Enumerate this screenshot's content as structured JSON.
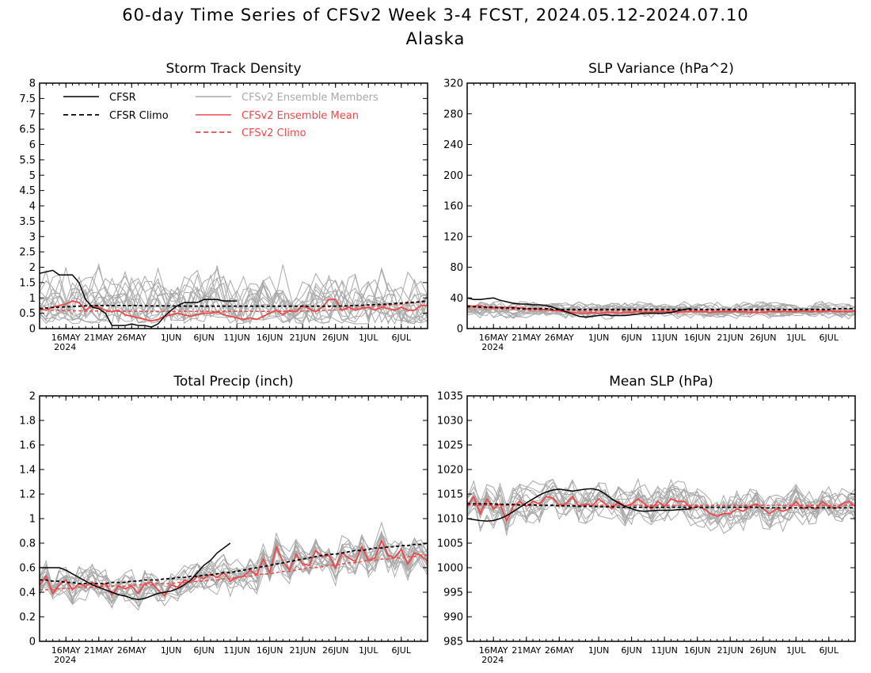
{
  "title": "60-day Time Series of CFSv2 Week 3-4 FCST, 2024.05.12-2024.07.10",
  "subtitle": "Alaska",
  "colors": {
    "cfsr": "#000000",
    "ensemble_members": "#a8a8a8",
    "ensemble_mean": "#f04848",
    "cfsv2_climo": "#f04848",
    "cfsr_climo": "#000000"
  },
  "legend": {
    "cfsr": "CFSR",
    "cfsr_climo": "CFSR Climo",
    "members": "CFSv2 Ensemble Members",
    "mean": "CFSv2 Ensemble Mean",
    "cfsv2_climo": "CFSv2 Climo"
  },
  "chart_data": [
    {
      "type": "line",
      "title": "Storm Track Density",
      "x_range": [
        "2024-05-12",
        "2024-07-10"
      ],
      "x_ticks": [
        "16MAY",
        "21MAY",
        "26MAY",
        "1JUN",
        "6JUN",
        "11JUN",
        "16JUN",
        "21JUN",
        "26JUN",
        "1JUL",
        "6JUL"
      ],
      "x_tick_dates": [
        "2024-05-16",
        "2024-05-21",
        "2024-05-26",
        "2024-06-01",
        "2024-06-06",
        "2024-06-11",
        "2024-06-16",
        "2024-06-21",
        "2024-06-26",
        "2024-07-01",
        "2024-07-06"
      ],
      "year_label": "2024",
      "ylim": [
        0,
        8
      ],
      "y_ticks": [
        "0",
        "0.5",
        "1",
        "1.5",
        "2",
        "2.5",
        "3",
        "3.5",
        "4",
        "4.5",
        "5",
        "5.5",
        "6",
        "6.5",
        "7",
        "7.5",
        "8"
      ],
      "legend_placement": "top-left",
      "series": {
        "cfsr": [
          1.8,
          1.85,
          1.9,
          1.75,
          1.75,
          1.75,
          1.5,
          0.95,
          0.7,
          0.65,
          0.5,
          0.1,
          0.1,
          0.1,
          0.15,
          0.1,
          0.1,
          0.05,
          0.15,
          0.4,
          0.6,
          0.75,
          0.85,
          0.85,
          0.85,
          0.95,
          0.95,
          0.95,
          0.9,
          0.9,
          0.9
        ],
        "cfsr_climo": [
          0.65,
          0.67,
          0.69,
          0.7,
          0.71,
          0.72,
          0.73,
          0.74,
          0.75,
          0.75,
          0.75,
          0.75,
          0.75,
          0.75,
          0.75,
          0.75,
          0.74,
          0.74,
          0.74,
          0.74,
          0.74,
          0.73,
          0.73,
          0.73,
          0.73,
          0.73,
          0.73,
          0.73,
          0.73,
          0.73,
          0.73,
          0.73,
          0.73,
          0.73,
          0.73,
          0.73,
          0.73,
          0.73,
          0.73,
          0.73,
          0.73,
          0.73,
          0.73,
          0.73,
          0.73,
          0.73,
          0.74,
          0.74,
          0.75,
          0.76,
          0.77,
          0.78,
          0.79,
          0.8,
          0.82,
          0.83,
          0.85,
          0.86,
          0.88,
          0.9
        ],
        "cfsv2_mean": [
          0.65,
          0.6,
          0.7,
          0.75,
          0.8,
          0.9,
          0.85,
          0.6,
          0.75,
          0.7,
          0.6,
          0.55,
          0.6,
          0.45,
          0.4,
          0.35,
          0.3,
          0.25,
          0.3,
          0.4,
          0.45,
          0.5,
          0.45,
          0.4,
          0.45,
          0.5,
          0.5,
          0.55,
          0.45,
          0.4,
          0.35,
          0.3,
          0.35,
          0.3,
          0.4,
          0.5,
          0.6,
          0.45,
          0.6,
          0.55,
          0.75,
          0.65,
          0.55,
          0.7,
          0.95,
          0.95,
          0.6,
          0.7,
          0.6,
          0.65,
          0.7,
          0.6,
          0.7,
          0.65,
          0.6,
          0.7,
          0.6,
          0.6,
          0.75,
          0.75
        ],
        "cfsv2_climo": [
          0.62,
          0.61,
          0.6,
          0.6,
          0.59,
          0.58,
          0.58,
          0.57,
          0.57,
          0.57,
          0.56,
          0.56,
          0.56,
          0.56,
          0.56,
          0.56,
          0.56,
          0.56,
          0.56,
          0.56,
          0.56,
          0.56,
          0.56,
          0.56,
          0.56,
          0.56,
          0.56,
          0.56,
          0.56,
          0.56,
          0.56,
          0.56,
          0.56,
          0.56,
          0.56,
          0.56,
          0.56,
          0.56,
          0.56,
          0.56,
          0.57,
          0.57,
          0.58,
          0.59,
          0.6,
          0.61,
          0.62,
          0.64,
          0.66,
          0.68,
          0.7,
          0.72,
          0.74,
          0.76,
          0.78,
          0.8,
          0.82,
          0.84,
          0.86,
          0.88
        ],
        "members_count": 16,
        "members_base": 0.65,
        "members_spread": 0.9,
        "members_min": 0,
        "members_max": 3.1
      }
    },
    {
      "type": "line",
      "title": "SLP Variance (hPa^2)",
      "x_range": [
        "2024-05-12",
        "2024-07-10"
      ],
      "x_ticks": [
        "16MAY",
        "21MAY",
        "26MAY",
        "1JUN",
        "6JUN",
        "11JUN",
        "16JUN",
        "21JUN",
        "26JUN",
        "1JUL",
        "6JUL"
      ],
      "x_tick_dates": [
        "2024-05-16",
        "2024-05-21",
        "2024-05-26",
        "2024-06-01",
        "2024-06-06",
        "2024-06-11",
        "2024-06-16",
        "2024-06-21",
        "2024-06-26",
        "2024-07-01",
        "2024-07-06"
      ],
      "year_label": "2024",
      "ylim": [
        0,
        320
      ],
      "y_ticks": [
        "0",
        "40",
        "80",
        "120",
        "160",
        "200",
        "240",
        "280",
        "320"
      ],
      "series": {
        "cfsr": [
          40,
          38,
          38,
          39,
          40,
          37,
          35,
          33,
          32,
          32,
          31,
          31,
          30,
          28,
          25,
          22,
          19,
          16,
          15,
          16,
          17,
          18,
          17,
          17,
          17,
          18,
          19,
          20,
          20,
          20,
          20,
          21,
          23,
          25,
          26
        ],
        "cfsr_climo": [
          29,
          29,
          28,
          28,
          28,
          27,
          27,
          27,
          26,
          26,
          26,
          26,
          26,
          25,
          25,
          25,
          25,
          25,
          25,
          25,
          25,
          25,
          25,
          25,
          25,
          25,
          25,
          25,
          25,
          25,
          25,
          25,
          25,
          25,
          25,
          25,
          25,
          25,
          25,
          25,
          25,
          25,
          25,
          25,
          25,
          25,
          25,
          25,
          25,
          25,
          25,
          25,
          25,
          25,
          25,
          25,
          26,
          26,
          26,
          26
        ],
        "cfsv2_mean": [
          30,
          29,
          30,
          28,
          27,
          28,
          27,
          28,
          27,
          26,
          26,
          25,
          25,
          24,
          23,
          22,
          21,
          20,
          20,
          21,
          20,
          21,
          21,
          20,
          21,
          21,
          22,
          21,
          21,
          22,
          22,
          22,
          21,
          22,
          22,
          22,
          22,
          21,
          22,
          22,
          22,
          22,
          22,
          21,
          21,
          21,
          22,
          22,
          22,
          22,
          22,
          23,
          22,
          22,
          22,
          23,
          22,
          22,
          22,
          23
        ],
        "cfsv2_climo": [
          27,
          27,
          27,
          26,
          26,
          26,
          25,
          25,
          25,
          24,
          24,
          24,
          24,
          23,
          23,
          23,
          23,
          23,
          23,
          23,
          23,
          23,
          23,
          23,
          23,
          23,
          23,
          23,
          23,
          23,
          23,
          23,
          23,
          23,
          23,
          23,
          23,
          23,
          23,
          23,
          23,
          23,
          23,
          23,
          23,
          23,
          23,
          23,
          23,
          23,
          23,
          23,
          23,
          23,
          23,
          23,
          23,
          23,
          23,
          23
        ],
        "members_count": 16,
        "members_base": 24,
        "members_spread": 12,
        "members_min": 8,
        "members_max": 48
      }
    },
    {
      "type": "line",
      "title": "Total Precip (inch)",
      "x_range": [
        "2024-05-12",
        "2024-07-10"
      ],
      "x_ticks": [
        "16MAY",
        "21MAY",
        "26MAY",
        "1JUN",
        "6JUN",
        "11JUN",
        "16JUN",
        "21JUN",
        "26JUN",
        "1JUL",
        "6JUL"
      ],
      "x_tick_dates": [
        "2024-05-16",
        "2024-05-21",
        "2024-05-26",
        "2024-06-01",
        "2024-06-06",
        "2024-06-11",
        "2024-06-16",
        "2024-06-21",
        "2024-06-26",
        "2024-07-01",
        "2024-07-06"
      ],
      "year_label": "2024",
      "ylim": [
        0,
        2
      ],
      "y_ticks": [
        "0",
        "0.2",
        "0.4",
        "0.6",
        "0.8",
        "1",
        "1.2",
        "1.4",
        "1.6",
        "1.8",
        "2"
      ],
      "series": {
        "cfsr": [
          0.6,
          0.6,
          0.6,
          0.6,
          0.58,
          0.55,
          0.52,
          0.49,
          0.46,
          0.44,
          0.42,
          0.4,
          0.38,
          0.37,
          0.35,
          0.34,
          0.35,
          0.37,
          0.39,
          0.4,
          0.41,
          0.43,
          0.46,
          0.5,
          0.56,
          0.62,
          0.66,
          0.72,
          0.76,
          0.8
        ],
        "cfsr_climo": [
          0.5,
          0.5,
          0.49,
          0.49,
          0.48,
          0.48,
          0.47,
          0.47,
          0.47,
          0.47,
          0.47,
          0.48,
          0.48,
          0.48,
          0.49,
          0.49,
          0.5,
          0.5,
          0.5,
          0.51,
          0.51,
          0.52,
          0.52,
          0.53,
          0.53,
          0.54,
          0.54,
          0.55,
          0.56,
          0.56,
          0.57,
          0.58,
          0.59,
          0.6,
          0.61,
          0.62,
          0.63,
          0.64,
          0.65,
          0.66,
          0.67,
          0.68,
          0.69,
          0.7,
          0.71,
          0.71,
          0.72,
          0.73,
          0.74,
          0.74,
          0.75,
          0.76,
          0.76,
          0.77,
          0.77,
          0.78,
          0.78,
          0.79,
          0.79,
          0.8
        ],
        "cfsv2_mean": [
          0.46,
          0.53,
          0.39,
          0.46,
          0.5,
          0.42,
          0.47,
          0.45,
          0.48,
          0.44,
          0.47,
          0.38,
          0.45,
          0.43,
          0.45,
          0.39,
          0.47,
          0.48,
          0.42,
          0.37,
          0.46,
          0.44,
          0.5,
          0.48,
          0.53,
          0.51,
          0.55,
          0.52,
          0.56,
          0.49,
          0.52,
          0.53,
          0.58,
          0.54,
          0.67,
          0.56,
          0.77,
          0.65,
          0.58,
          0.71,
          0.63,
          0.62,
          0.74,
          0.69,
          0.7,
          0.6,
          0.72,
          0.68,
          0.65,
          0.77,
          0.66,
          0.68,
          0.82,
          0.7,
          0.68,
          0.75,
          0.63,
          0.72,
          0.7,
          0.65
        ],
        "cfsv2_climo": [
          0.42,
          0.42,
          0.42,
          0.43,
          0.43,
          0.43,
          0.44,
          0.44,
          0.44,
          0.44,
          0.45,
          0.45,
          0.45,
          0.45,
          0.46,
          0.46,
          0.46,
          0.46,
          0.47,
          0.47,
          0.47,
          0.48,
          0.48,
          0.48,
          0.49,
          0.49,
          0.5,
          0.5,
          0.51,
          0.51,
          0.52,
          0.53,
          0.53,
          0.54,
          0.55,
          0.55,
          0.56,
          0.57,
          0.57,
          0.58,
          0.59,
          0.6,
          0.6,
          0.61,
          0.62,
          0.62,
          0.63,
          0.64,
          0.64,
          0.65,
          0.66,
          0.66,
          0.67,
          0.67,
          0.68,
          0.68,
          0.69,
          0.69,
          0.7,
          0.7
        ],
        "members_count": 16,
        "members_base": 0,
        "members_spread": 0.16,
        "members_min": 0.15,
        "members_max": 1.12
      }
    },
    {
      "type": "line",
      "title": "Mean SLP (hPa)",
      "x_range": [
        "2024-05-12",
        "2024-07-10"
      ],
      "x_ticks": [
        "16MAY",
        "21MAY",
        "26MAY",
        "1JUN",
        "6JUN",
        "11JUN",
        "16JUN",
        "21JUN",
        "26JUN",
        "1JUL",
        "6JUL"
      ],
      "x_tick_dates": [
        "2024-05-16",
        "2024-05-21",
        "2024-05-26",
        "2024-06-01",
        "2024-06-06",
        "2024-06-11",
        "2024-06-16",
        "2024-06-21",
        "2024-06-26",
        "2024-07-01",
        "2024-07-06"
      ],
      "year_label": "2024",
      "ylim": [
        985,
        1035
      ],
      "y_ticks": [
        "985",
        "990",
        "995",
        "1000",
        "1005",
        "1010",
        "1015",
        "1020",
        "1025",
        "1030",
        "1035"
      ],
      "series": {
        "cfsr": [
          1010,
          1009.8,
          1009.6,
          1009.5,
          1009.6,
          1010,
          1010.6,
          1011.4,
          1012.3,
          1013.2,
          1014,
          1014.8,
          1015.4,
          1015.8,
          1016,
          1015.8,
          1015.6,
          1015.8,
          1016,
          1016.1,
          1015.8,
          1015,
          1014,
          1013.2,
          1012.5,
          1012,
          1011.6,
          1011.5,
          1011.6,
          1011.7,
          1011.7,
          1011.7,
          1011.8,
          1011.9,
          1012
        ],
        "cfsr_climo": [
          1013,
          1013,
          1013,
          1013,
          1013,
          1012.9,
          1012.9,
          1012.9,
          1012.8,
          1012.8,
          1012.8,
          1012.7,
          1012.7,
          1012.7,
          1012.6,
          1012.6,
          1012.6,
          1012.5,
          1012.5,
          1012.5,
          1012.4,
          1012.4,
          1012.4,
          1012.3,
          1012.3,
          1012.3,
          1012.3,
          1012.3,
          1012.3,
          1012.3,
          1012.3,
          1012.3,
          1012.3,
          1012.3,
          1012.3,
          1012.3,
          1012.3,
          1012.3,
          1012.3,
          1012.3,
          1012.3,
          1012.3,
          1012.3,
          1012.3,
          1012.3,
          1012.2,
          1012.2,
          1012.2,
          1012.2,
          1012.2,
          1012.2,
          1012.2,
          1012.2,
          1012.2,
          1012.2,
          1012.2,
          1012.2,
          1012.2,
          1012.2,
          1012.2
        ],
        "cfsv2_mean": [
          1012.5,
          1014.5,
          1011,
          1014,
          1012,
          1013,
          1009.5,
          1012.5,
          1013.5,
          1012.5,
          1013.5,
          1013,
          1014.5,
          1014.2,
          1012.8,
          1013,
          1014.5,
          1012.5,
          1013,
          1012.6,
          1014,
          1013,
          1012,
          1013.5,
          1012.5,
          1013,
          1014,
          1013,
          1012,
          1013.5,
          1012.5,
          1014,
          1013.5,
          1013.5,
          1012,
          1012.5,
          1012,
          1011,
          1010.5,
          1011,
          1011,
          1012,
          1011.5,
          1012.5,
          1013,
          1012,
          1011,
          1012,
          1011.5,
          1012,
          1013.5,
          1012,
          1012.5,
          1012,
          1013.5,
          1012.5,
          1012,
          1013,
          1013.5,
          1012.5
        ],
        "cfsv2_climo": [
          1012.7,
          1012.7,
          1012.7,
          1012.7,
          1012.7,
          1012.7,
          1012.7,
          1012.7,
          1012.7,
          1012.7,
          1012.7,
          1012.7,
          1012.7,
          1012.7,
          1012.7,
          1012.7,
          1012.7,
          1012.7,
          1012.7,
          1012.7,
          1012.7,
          1012.7,
          1012.7,
          1012.7,
          1012.7,
          1012.7,
          1012.7,
          1012.7,
          1012.7,
          1012.7,
          1012.7,
          1012.7,
          1012.7,
          1012.7,
          1012.7,
          1012.7,
          1012.7,
          1012.7,
          1012.7,
          1012.7,
          1012.7,
          1012.7,
          1012.7,
          1012.7,
          1012.7,
          1012.7,
          1012.7,
          1012.7,
          1012.7,
          1012.7,
          1012.7,
          1012.7,
          1012.7,
          1012.7,
          1012.7,
          1012.7,
          1012.7,
          1012.7,
          1012.7,
          1012.7
        ],
        "members_count": 16,
        "members_base": 0,
        "members_spread": 4.5,
        "members_min": 1004,
        "members_max": 1022
      }
    }
  ]
}
